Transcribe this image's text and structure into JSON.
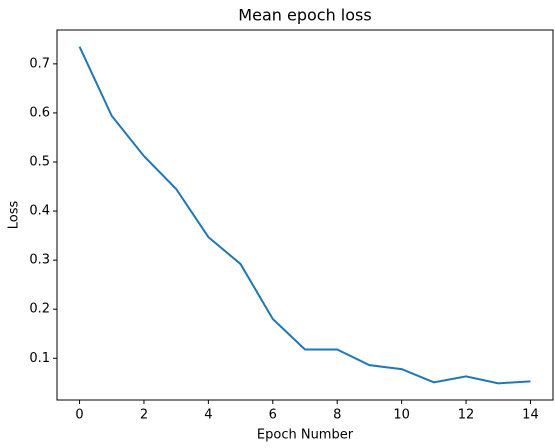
{
  "chart_data": {
    "type": "line",
    "title": "Mean epoch loss",
    "x_label": "Epoch Number",
    "y_label": "Loss",
    "x": [
      0,
      1,
      2,
      3,
      4,
      5,
      6,
      7,
      8,
      9,
      10,
      11,
      12,
      13,
      14
    ],
    "series": [
      {
        "color": "#1f77b4",
        "values": [
          0.735,
          0.594,
          0.512,
          0.445,
          0.347,
          0.292,
          0.18,
          0.118,
          0.118,
          0.086,
          0.078,
          0.051,
          0.063,
          0.049,
          0.053
        ]
      }
    ],
    "xlim": [
      -0.7,
      14.7
    ],
    "xticks": [
      0,
      2,
      4,
      6,
      8,
      10,
      12,
      14
    ],
    "ylim": [
      0.015,
      0.769
    ],
    "yticks": [
      0.1,
      0.2,
      0.3,
      0.4,
      0.5,
      0.6,
      0.7
    ]
  }
}
